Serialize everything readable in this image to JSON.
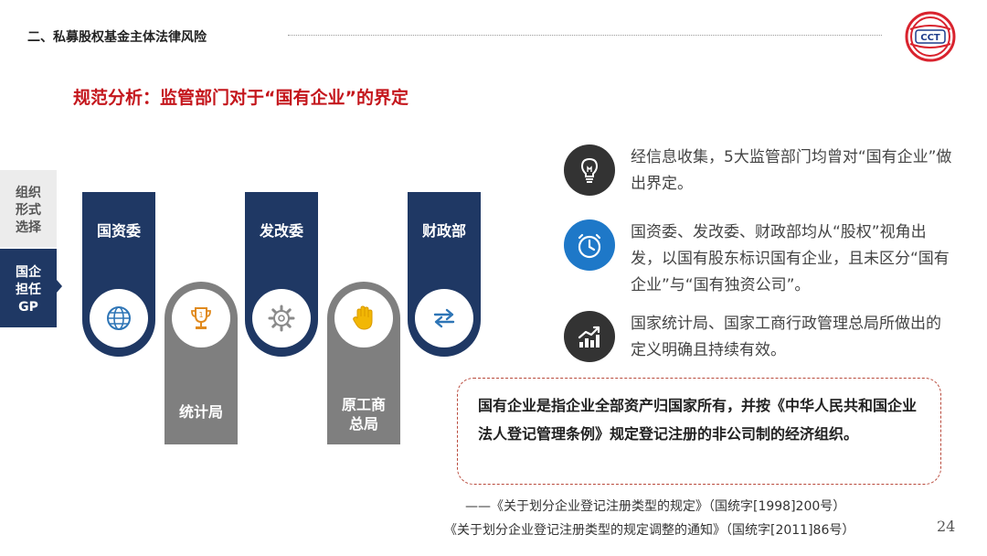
{
  "header": {
    "section_title": "二、私募股权基金主体法律风险",
    "logo_text": "CCT"
  },
  "main_title": "规范分析：监管部门对于“国有企业”的界定",
  "side_tabs": [
    {
      "lines": [
        "组织",
        "形式",
        "选择"
      ],
      "active": false
    },
    {
      "lines": [
        "国企",
        "担任",
        "GP"
      ],
      "active": true
    }
  ],
  "pillars": [
    {
      "label": "国资委",
      "icon": "globe-icon"
    },
    {
      "label": "统计局",
      "icon": "trophy-icon"
    },
    {
      "label": "发改委",
      "icon": "gear-icon"
    },
    {
      "label_lines": [
        "原工商",
        "总局"
      ],
      "icon": "hand-icon"
    },
    {
      "label": "财政部",
      "icon": "exchange-arrows-icon"
    }
  ],
  "info_items": [
    {
      "icon": "lightbulb-icon",
      "icon_color": "#333333",
      "text": "经信息收集，5大监管部门均曾对“国有企业”做出界定。"
    },
    {
      "icon": "stopwatch-icon",
      "icon_color": "#1e78c8",
      "text": "国资委、发改委、财政部均从“股权”视角出发，以国有股东标识国有企业，且未区分“国有企业”与“国有独资公司”。"
    },
    {
      "icon": "growth-chart-icon",
      "icon_color": "#333333",
      "text": "国家统计局、国家工商行政管理总局所做出的定义明确且持续有效。"
    }
  ],
  "definition": "国有企业是指企业全部资产归国家所有，并按《中华人民共和国企业法人登记管理条例》规定登记注册的非公司制的经济组织。",
  "citations": [
    "——《关于划分企业登记注册类型的规定》（国统字[1998]200号）",
    "《关于划分企业登记注册类型的规定调整的通知》（国统字[2011]86号）"
  ],
  "page_number": "24",
  "colors": {
    "accent_red": "#c4161c",
    "navy": "#1f3864",
    "gray": "#7f7f7f",
    "blue": "#1e78c8"
  }
}
